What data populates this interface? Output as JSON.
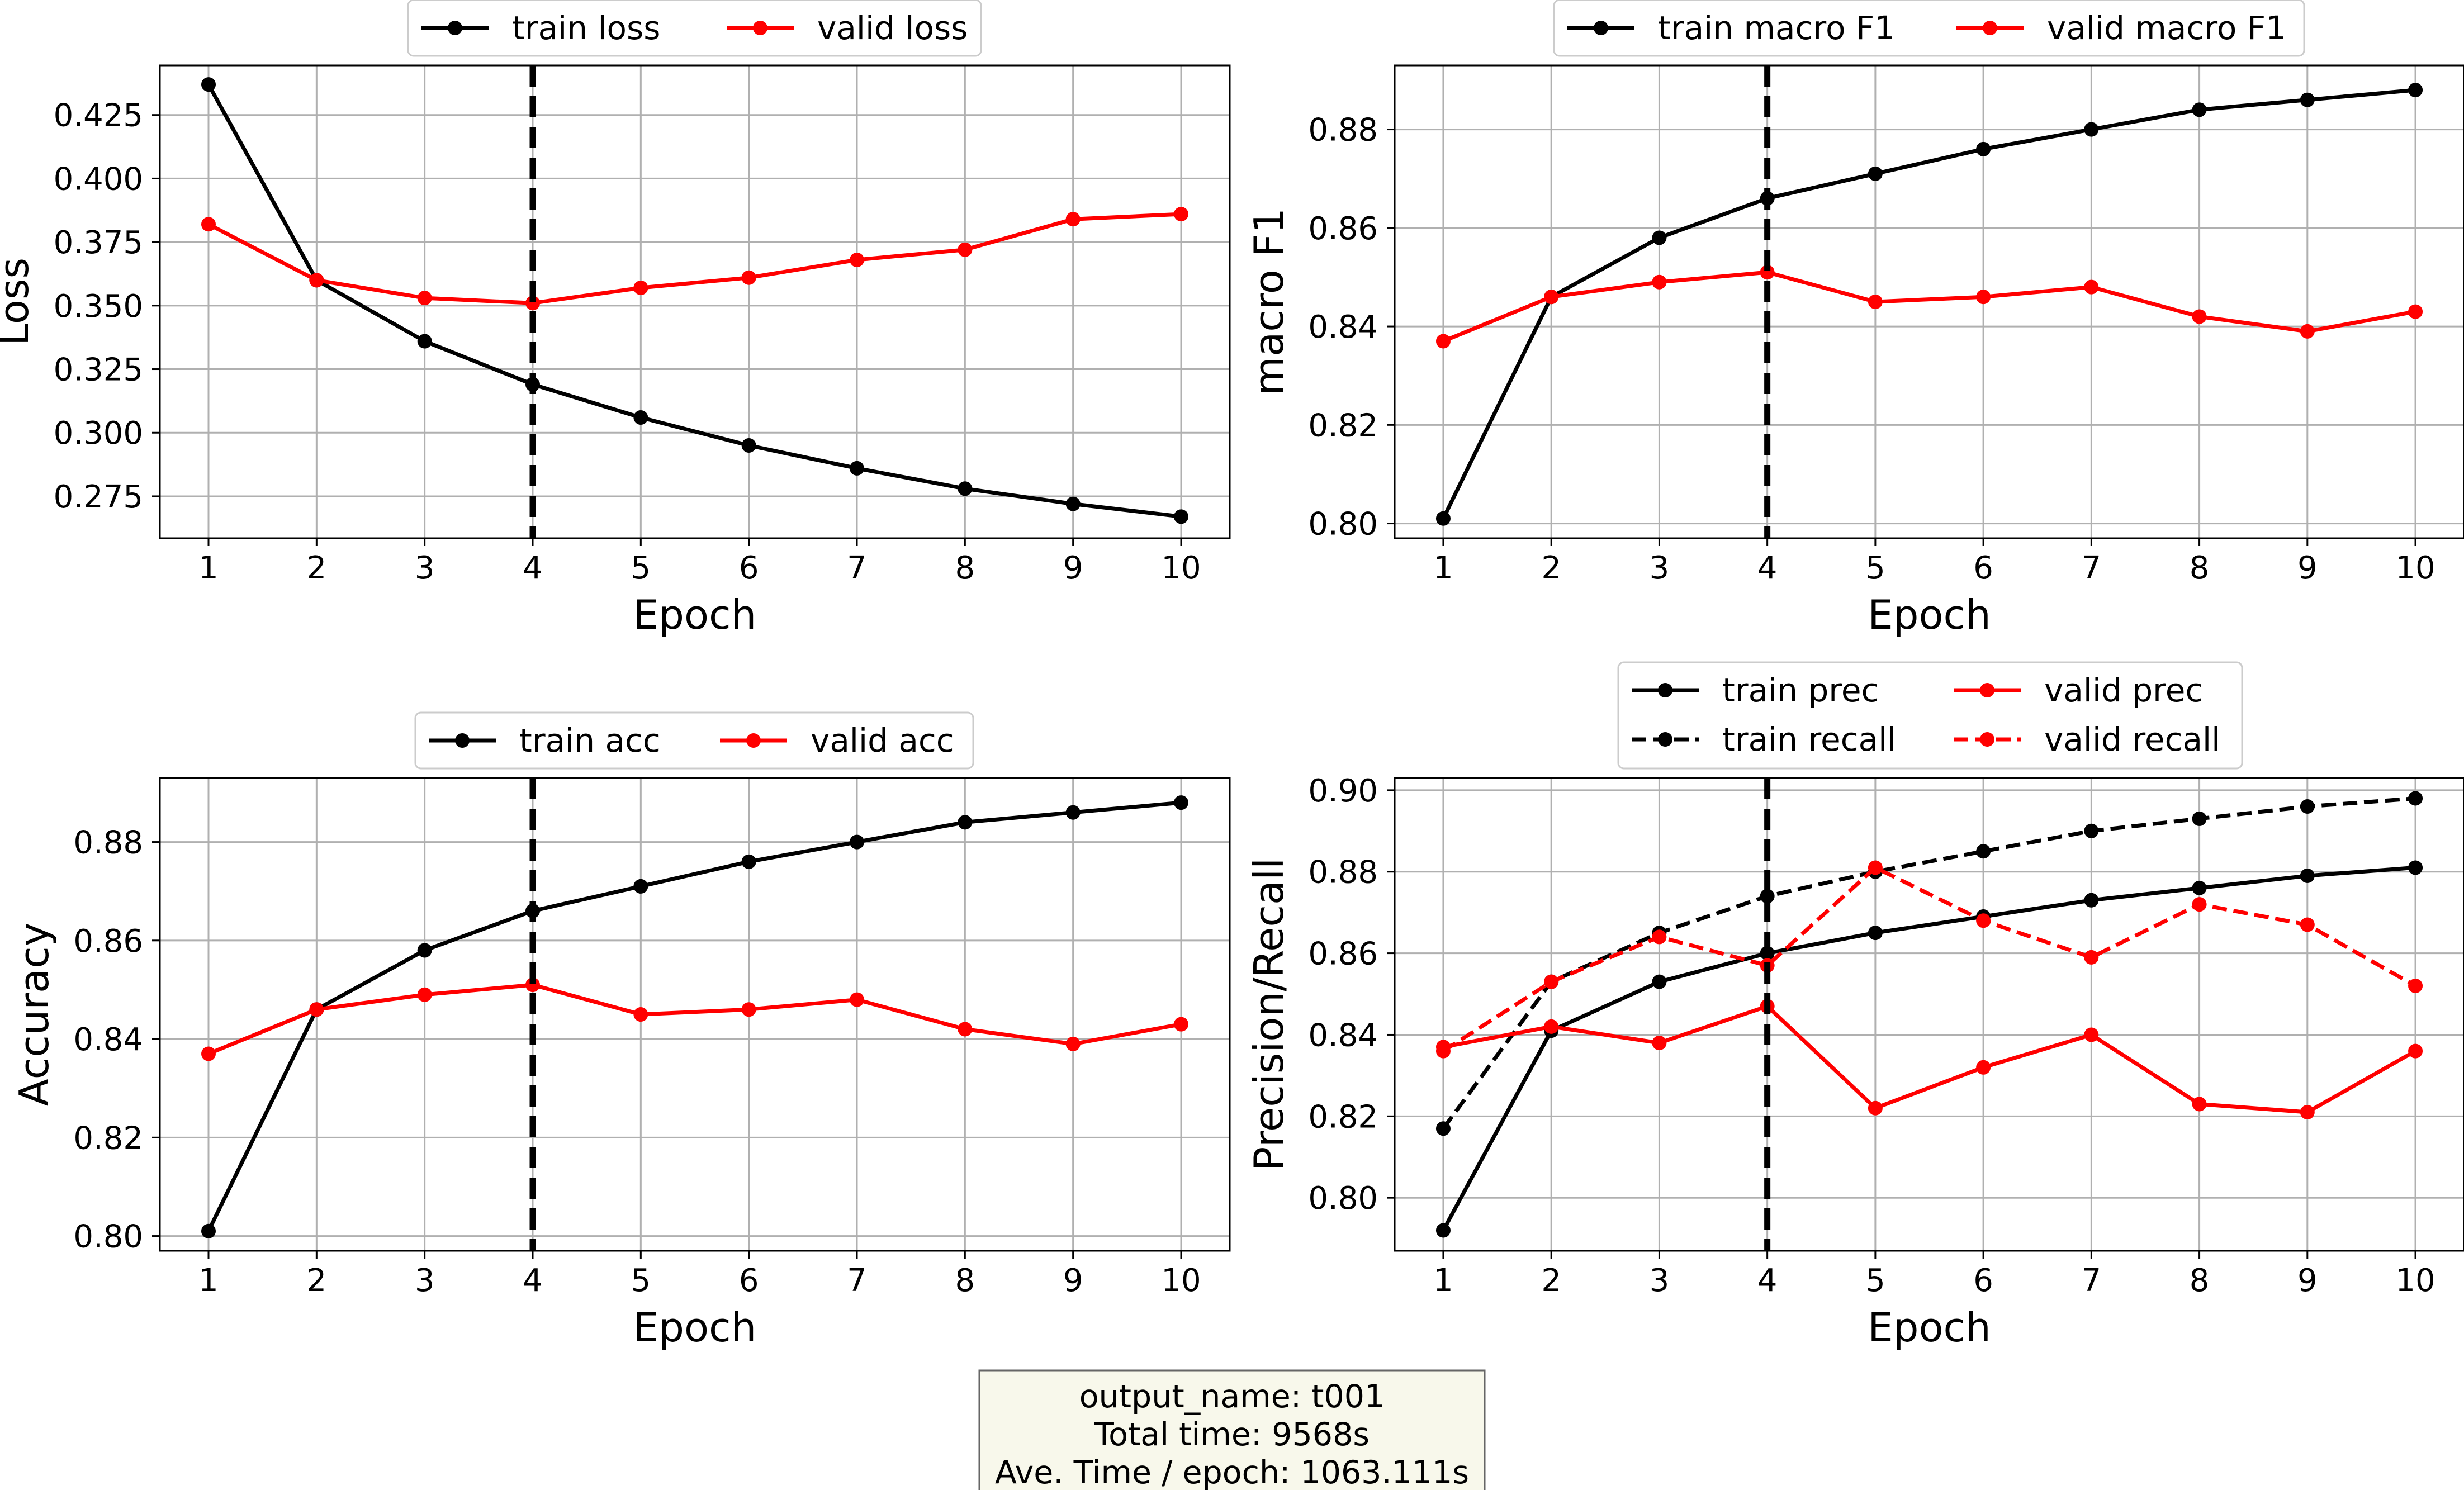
{
  "figure": {
    "info_box": {
      "lines": [
        "output_name: t001",
        "Total time: 9568s",
        "Ave. Time / epoch: 1063.111s"
      ],
      "background": "#f8f8eb",
      "border": "#666666"
    }
  },
  "colors": {
    "train": "#000000",
    "valid": "#ff0000",
    "grid": "#b0b0b0",
    "marker_line": "#000000"
  },
  "chart_data": [
    {
      "type": "line",
      "xlabel": "Epoch",
      "ylabel": "Loss",
      "x": [
        1,
        2,
        3,
        4,
        5,
        6,
        7,
        8,
        9,
        10
      ],
      "xlim": [
        0.55,
        10.45
      ],
      "ylim": [
        0.2585,
        0.4445
      ],
      "yticks": [
        0.275,
        0.3,
        0.325,
        0.35,
        0.375,
        0.4,
        0.425
      ],
      "yticks_text": [
        "0.275",
        "0.300",
        "0.325",
        "0.350",
        "0.375",
        "0.400",
        "0.425"
      ],
      "vline_x": 4,
      "grid": true,
      "legend_placement": "top-center",
      "legend_cols": 2,
      "series": [
        {
          "name": "train loss",
          "color": "#000000",
          "dashed": false,
          "values": [
            0.437,
            0.36,
            0.336,
            0.319,
            0.306,
            0.295,
            0.286,
            0.278,
            0.272,
            0.267
          ]
        },
        {
          "name": "valid loss",
          "color": "#ff0000",
          "dashed": false,
          "values": [
            0.382,
            0.36,
            0.353,
            0.351,
            0.357,
            0.361,
            0.368,
            0.372,
            0.384,
            0.386
          ]
        }
      ]
    },
    {
      "type": "line",
      "xlabel": "Epoch",
      "ylabel": "macro F1",
      "x": [
        1,
        2,
        3,
        4,
        5,
        6,
        7,
        8,
        9,
        10
      ],
      "xlim": [
        0.55,
        10.45
      ],
      "ylim": [
        0.797,
        0.893
      ],
      "yticks": [
        0.8,
        0.82,
        0.84,
        0.86,
        0.88
      ],
      "yticks_text": [
        "0.80",
        "0.82",
        "0.84",
        "0.86",
        "0.88"
      ],
      "vline_x": 4,
      "grid": true,
      "legend_placement": "top-center",
      "legend_cols": 2,
      "series": [
        {
          "name": "train macro F1",
          "color": "#000000",
          "dashed": false,
          "values": [
            0.801,
            0.846,
            0.858,
            0.866,
            0.871,
            0.876,
            0.88,
            0.884,
            0.886,
            0.888
          ]
        },
        {
          "name": "valid macro F1",
          "color": "#ff0000",
          "dashed": false,
          "values": [
            0.837,
            0.846,
            0.849,
            0.851,
            0.845,
            0.846,
            0.848,
            0.842,
            0.839,
            0.843
          ]
        }
      ]
    },
    {
      "type": "line",
      "xlabel": "Epoch",
      "ylabel": "Accuracy",
      "x": [
        1,
        2,
        3,
        4,
        5,
        6,
        7,
        8,
        9,
        10
      ],
      "xlim": [
        0.55,
        10.45
      ],
      "ylim": [
        0.797,
        0.893
      ],
      "yticks": [
        0.8,
        0.82,
        0.84,
        0.86,
        0.88
      ],
      "yticks_text": [
        "0.80",
        "0.82",
        "0.84",
        "0.86",
        "0.88"
      ],
      "vline_x": 4,
      "grid": true,
      "legend_placement": "top-center",
      "legend_cols": 2,
      "series": [
        {
          "name": "train acc",
          "color": "#000000",
          "dashed": false,
          "values": [
            0.801,
            0.846,
            0.858,
            0.866,
            0.871,
            0.876,
            0.88,
            0.884,
            0.886,
            0.888
          ]
        },
        {
          "name": "valid acc",
          "color": "#ff0000",
          "dashed": false,
          "values": [
            0.837,
            0.846,
            0.849,
            0.851,
            0.845,
            0.846,
            0.848,
            0.842,
            0.839,
            0.843
          ]
        }
      ]
    },
    {
      "type": "line",
      "xlabel": "Epoch",
      "ylabel": "Precision/Recall",
      "x": [
        1,
        2,
        3,
        4,
        5,
        6,
        7,
        8,
        9,
        10
      ],
      "xlim": [
        0.55,
        10.45
      ],
      "ylim": [
        0.787,
        0.903
      ],
      "yticks": [
        0.8,
        0.82,
        0.84,
        0.86,
        0.88,
        0.9
      ],
      "yticks_text": [
        "0.80",
        "0.82",
        "0.84",
        "0.86",
        "0.88",
        "0.90"
      ],
      "vline_x": 4,
      "grid": true,
      "legend_placement": "top-center",
      "legend_cols": 2,
      "series": [
        {
          "name": "train prec",
          "color": "#000000",
          "dashed": false,
          "values": [
            0.792,
            0.841,
            0.853,
            0.86,
            0.865,
            0.869,
            0.873,
            0.876,
            0.879,
            0.881
          ]
        },
        {
          "name": "train recall",
          "color": "#000000",
          "dashed": true,
          "values": [
            0.817,
            0.853,
            0.865,
            0.874,
            0.88,
            0.885,
            0.89,
            0.893,
            0.896,
            0.898
          ]
        },
        {
          "name": "valid prec",
          "color": "#ff0000",
          "dashed": false,
          "values": [
            0.837,
            0.842,
            0.838,
            0.847,
            0.822,
            0.832,
            0.84,
            0.823,
            0.821,
            0.836
          ]
        },
        {
          "name": "valid recall",
          "color": "#ff0000",
          "dashed": true,
          "values": [
            0.836,
            0.853,
            0.864,
            0.857,
            0.881,
            0.868,
            0.859,
            0.872,
            0.867,
            0.852
          ]
        }
      ]
    }
  ]
}
